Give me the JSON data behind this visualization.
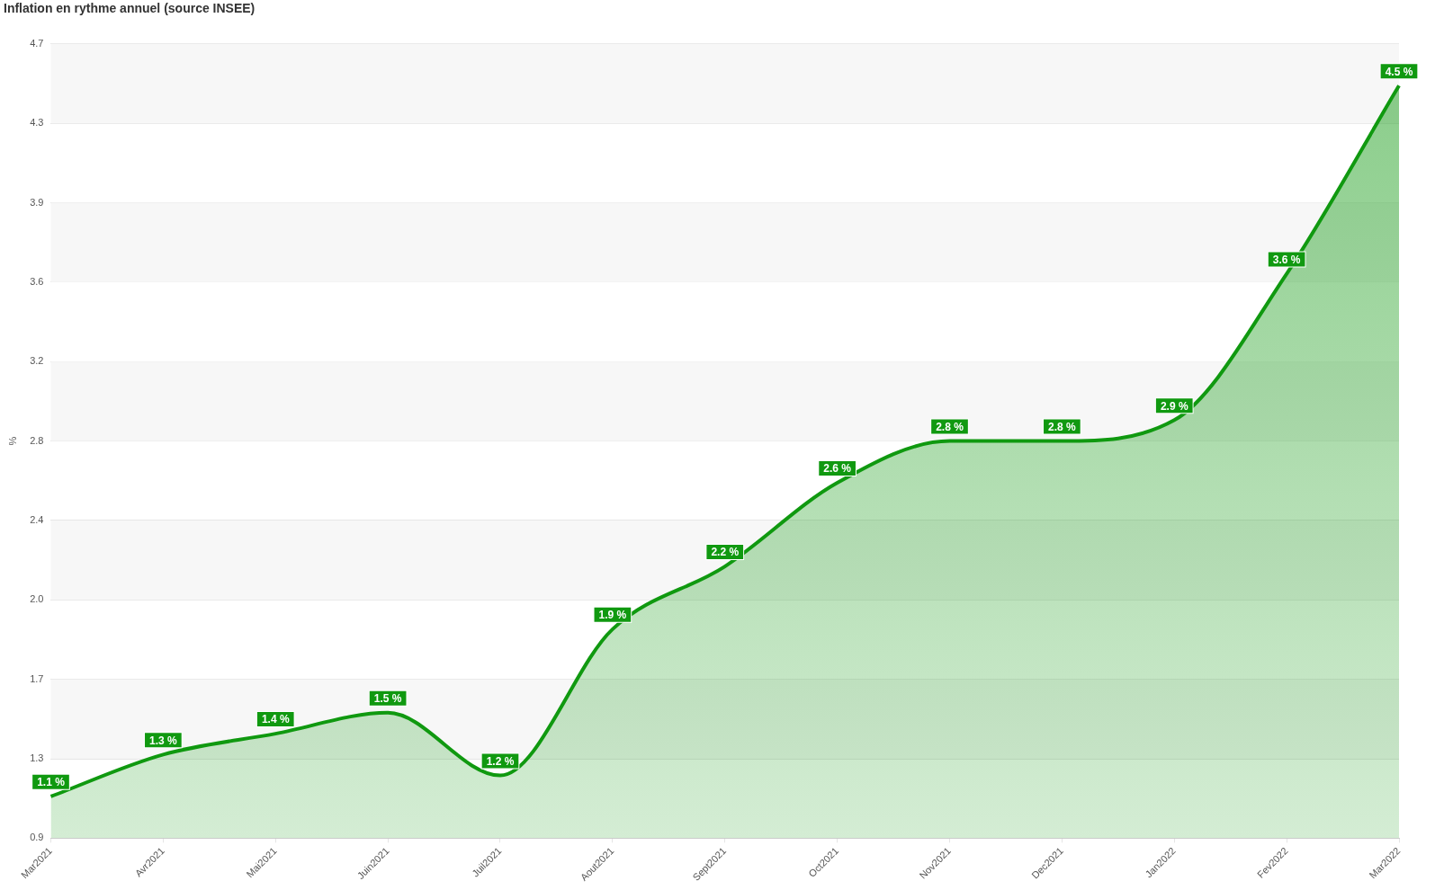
{
  "chart_data": {
    "type": "area",
    "title": "Inflation en rythme annuel (source INSEE)",
    "ylabel": "%",
    "categories": [
      "Mar2021",
      "Avr2021",
      "Mai2021",
      "Juin2021",
      "Juil2021",
      "Aout2021",
      "Sept2021",
      "Oct2021",
      "Nov2021",
      "Dec2021",
      "Jan2022",
      "Fev2022",
      "Mar2022"
    ],
    "series": [
      {
        "color": "#109910",
        "values": [
          1.1,
          1.3,
          1.4,
          1.5,
          1.2,
          1.9,
          2.2,
          2.6,
          2.8,
          2.8,
          2.9,
          3.6,
          4.5
        ],
        "value_labels": [
          "1.1 %",
          "1.3 %",
          "1.4 %",
          "1.5 %",
          "1.2 %",
          "1.9 %",
          "2.2 %",
          "2.6 %",
          "2.8 %",
          "2.8 %",
          "2.9 %",
          "3.6 %",
          "4.5 %"
        ]
      }
    ],
    "ylim": [
      0.9,
      4.7
    ],
    "yticks": [
      0.9,
      {
        "value": 1.28,
        "label": "1.3"
      },
      {
        "value": 1.66,
        "label": "1.7"
      },
      {
        "value": 2.04,
        "label": "2.0"
      },
      {
        "value": 2.42,
        "label": "2.4"
      },
      2.8,
      {
        "value": 3.18,
        "label": "3.2"
      },
      {
        "value": 3.56,
        "label": "3.6"
      },
      {
        "value": 3.94,
        "label": "3.9"
      },
      {
        "value": 4.32,
        "label": "4.3"
      },
      4.7
    ],
    "grid": true,
    "legend": false,
    "line_style": "solid"
  }
}
